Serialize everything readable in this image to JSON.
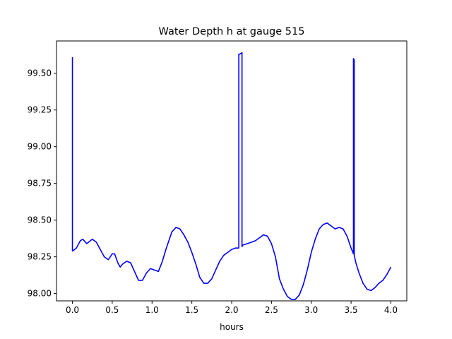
{
  "chart_data": {
    "type": "line",
    "title": "Water Depth h at gauge 515",
    "xlabel": "hours",
    "ylabel": "",
    "xlim": [
      -0.2,
      4.2
    ],
    "ylim": [
      97.95,
      99.72
    ],
    "xticks": [
      0.0,
      0.5,
      1.0,
      1.5,
      2.0,
      2.5,
      3.0,
      3.5,
      4.0
    ],
    "xtick_labels": [
      "0.0",
      "0.5",
      "1.0",
      "1.5",
      "2.0",
      "2.5",
      "3.0",
      "3.5",
      "4.0"
    ],
    "yticks": [
      98.0,
      98.25,
      98.5,
      98.75,
      99.0,
      99.25,
      99.5
    ],
    "ytick_labels": [
      "98.00",
      "98.25",
      "98.50",
      "98.75",
      "99.00",
      "99.25",
      "99.50"
    ],
    "grid": false,
    "series": [
      {
        "color": "#0000ff",
        "x": [
          0.0,
          0.0,
          0.005,
          0.05,
          0.1,
          0.13,
          0.18,
          0.25,
          0.3,
          0.35,
          0.4,
          0.45,
          0.5,
          0.53,
          0.57,
          0.6,
          0.63,
          0.68,
          0.73,
          0.78,
          0.83,
          0.88,
          0.93,
          0.98,
          1.03,
          1.08,
          1.13,
          1.18,
          1.25,
          1.3,
          1.35,
          1.4,
          1.45,
          1.5,
          1.55,
          1.6,
          1.65,
          1.7,
          1.75,
          1.8,
          1.85,
          1.9,
          1.95,
          2.0,
          2.05,
          2.09,
          2.09,
          2.1,
          2.13,
          2.13,
          2.14,
          2.2,
          2.25,
          2.3,
          2.35,
          2.4,
          2.45,
          2.5,
          2.55,
          2.6,
          2.65,
          2.7,
          2.75,
          2.8,
          2.85,
          2.9,
          2.95,
          3.0,
          3.05,
          3.1,
          3.15,
          3.2,
          3.25,
          3.3,
          3.35,
          3.4,
          3.45,
          3.5,
          3.53,
          3.53,
          3.54,
          3.54,
          3.56,
          3.6,
          3.65,
          3.7,
          3.75,
          3.8,
          3.85,
          3.9,
          3.95,
          4.0
        ],
        "values": [
          99.61,
          98.29,
          98.29,
          98.31,
          98.36,
          98.37,
          98.34,
          98.37,
          98.35,
          98.3,
          98.25,
          98.23,
          98.27,
          98.27,
          98.21,
          98.18,
          98.2,
          98.22,
          98.21,
          98.15,
          98.09,
          98.09,
          98.14,
          98.17,
          98.16,
          98.15,
          98.22,
          98.31,
          98.42,
          98.45,
          98.44,
          98.4,
          98.35,
          98.28,
          98.2,
          98.11,
          98.07,
          98.07,
          98.1,
          98.16,
          98.22,
          98.26,
          98.28,
          98.3,
          98.31,
          98.31,
          99.63,
          99.63,
          99.64,
          98.32,
          98.33,
          98.34,
          98.35,
          98.36,
          98.38,
          98.4,
          98.39,
          98.34,
          98.25,
          98.1,
          98.03,
          97.98,
          97.96,
          97.96,
          97.99,
          98.06,
          98.16,
          98.28,
          98.37,
          98.44,
          98.47,
          98.48,
          98.46,
          98.44,
          98.45,
          98.44,
          98.39,
          98.31,
          98.27,
          99.6,
          99.59,
          98.26,
          98.21,
          98.14,
          98.07,
          98.03,
          98.02,
          98.04,
          98.07,
          98.09,
          98.13,
          98.18
        ]
      }
    ]
  }
}
